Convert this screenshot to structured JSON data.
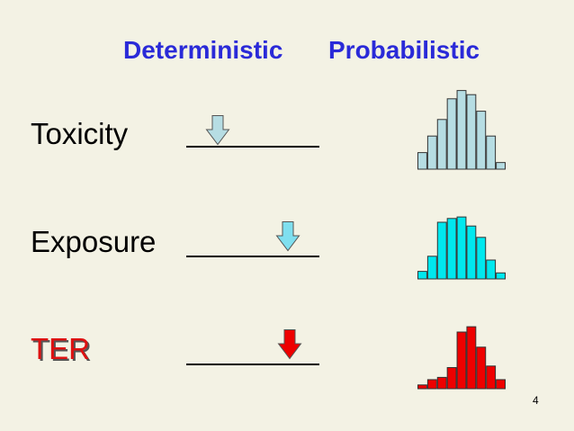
{
  "headers": {
    "deterministic": "Deterministic",
    "probabilistic": "Probabilistic"
  },
  "rows": [
    {
      "label": "Toxicity",
      "arrow": {
        "icon": "down-arrow-icon",
        "color": "#b6dde3",
        "position": 0.18
      },
      "histogram": {
        "color": "#b6dde3",
        "values": [
          20,
          40,
          60,
          85,
          95,
          90,
          70,
          40,
          8
        ]
      }
    },
    {
      "label": "Exposure",
      "arrow": {
        "icon": "down-arrow-icon",
        "color": "#7fdfef",
        "position": 0.82
      },
      "histogram": {
        "color": "#00e8ee",
        "values": [
          10,
          30,
          75,
          80,
          82,
          70,
          55,
          25,
          8
        ]
      }
    },
    {
      "label": "TER",
      "arrow": {
        "icon": "down-arrow-icon",
        "color": "#ee0000",
        "position": 0.84
      },
      "histogram": {
        "color": "#ee0000",
        "values": [
          5,
          12,
          15,
          28,
          75,
          82,
          55,
          30,
          12
        ]
      }
    }
  ],
  "slide_number": "4"
}
